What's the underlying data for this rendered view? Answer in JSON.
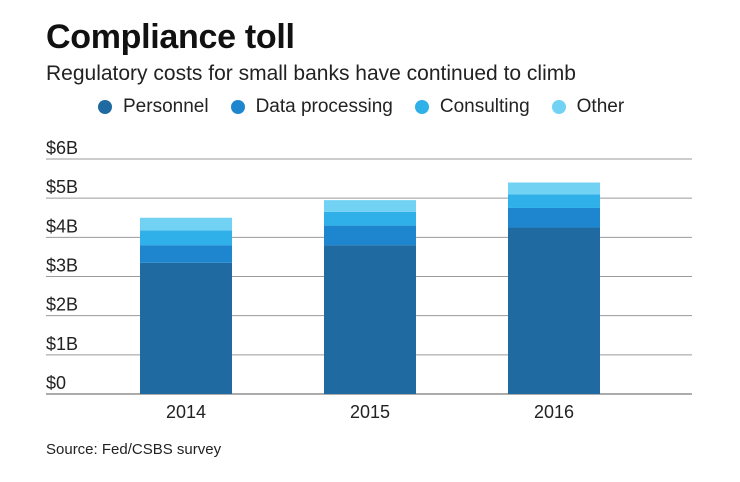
{
  "header": {
    "title": "Compliance toll",
    "subtitle": "Regulatory costs for small banks have continued to climb"
  },
  "footer": {
    "source": "Source: Fed/CSBS survey"
  },
  "chart_data": {
    "type": "bar",
    "stacked": true,
    "title": "Compliance toll",
    "subtitle": "Regulatory costs for small banks have continued to climb",
    "xlabel": "",
    "ylabel": "",
    "categories": [
      "2014",
      "2015",
      "2016"
    ],
    "series": [
      {
        "name": "Personnel",
        "color": "#1f6aa0",
        "values": [
          3.35,
          3.8,
          4.25
        ]
      },
      {
        "name": "Data processing",
        "color": "#1d86cf",
        "values": [
          0.45,
          0.5,
          0.5
        ]
      },
      {
        "name": "Consulting",
        "color": "#2fb0e8",
        "values": [
          0.38,
          0.35,
          0.35
        ]
      },
      {
        "name": "Other",
        "color": "#72d2f4",
        "values": [
          0.32,
          0.3,
          0.3
        ]
      }
    ],
    "ylim": [
      0,
      6
    ],
    "yticks": [
      0,
      1,
      2,
      3,
      4,
      5,
      6
    ],
    "ytick_labels": [
      "$0",
      "$1B",
      "$2B",
      "$3B",
      "$4B",
      "$5B",
      "$6B"
    ],
    "grid": true,
    "legend_position": "top"
  }
}
